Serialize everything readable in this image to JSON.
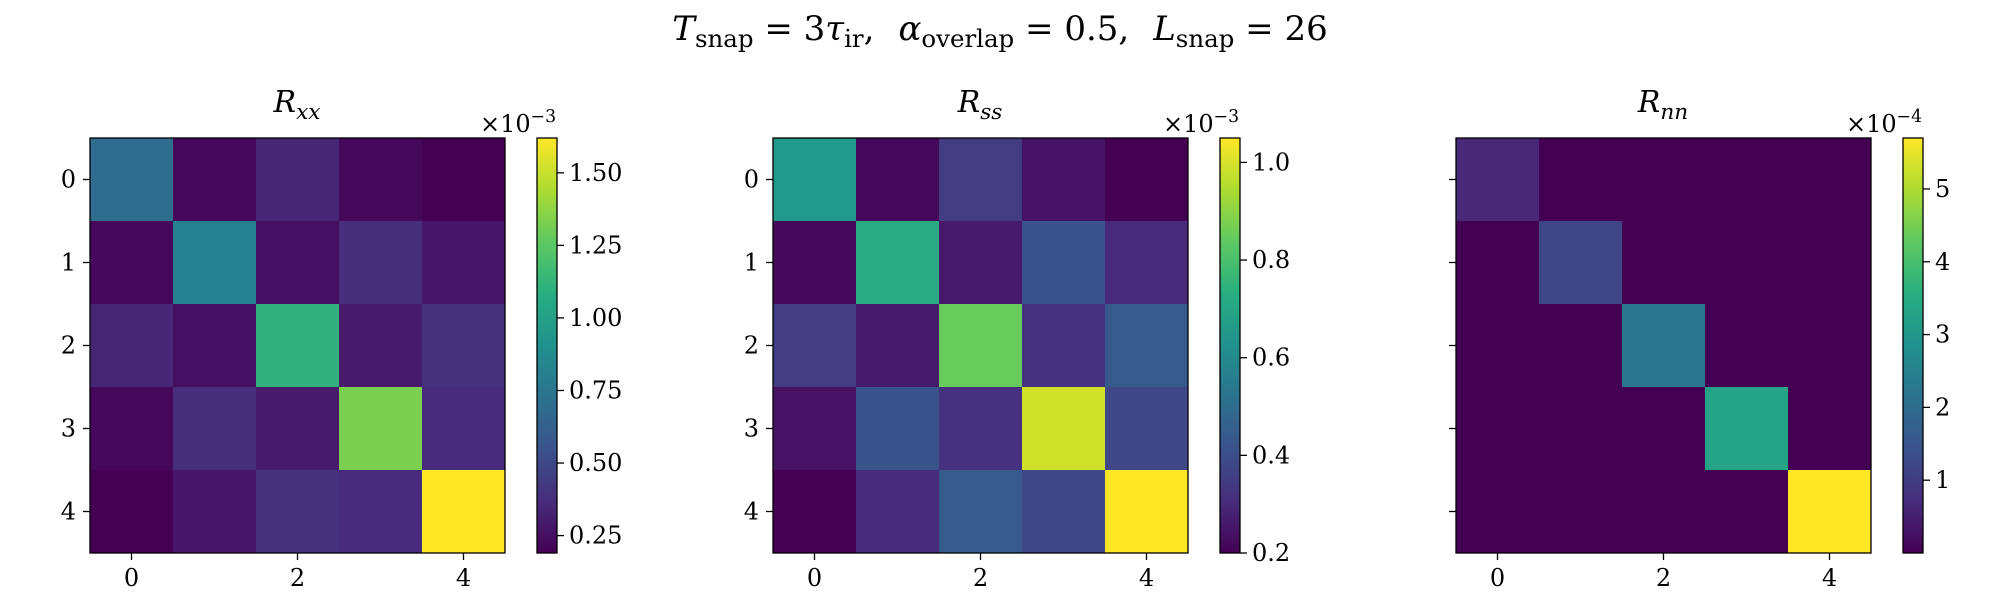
{
  "figure": {
    "suptitle_parts": {
      "t": "T",
      "t_sub": "snap",
      "t_eq": " = 3",
      "tau": "τ",
      "tau_sub": "ir",
      "sep1": ",",
      "alpha": "α",
      "alpha_sub": "overlap",
      "alpha_eq": " = 0.5,",
      "l": "L",
      "l_sub": "snap",
      "l_eq": " = 26"
    }
  },
  "chart_data": [
    {
      "type": "heatmap",
      "title": "R",
      "title_sub": "xx",
      "colormap": "viridis",
      "x_ticks": [
        "0",
        "2",
        "4"
      ],
      "y_ticks": [
        "0",
        "1",
        "2",
        "3",
        "4"
      ],
      "matrix": [
        [
          0.7,
          0.22,
          0.34,
          0.22,
          0.19
        ],
        [
          0.22,
          0.82,
          0.25,
          0.38,
          0.28
        ],
        [
          0.34,
          0.25,
          1.1,
          0.29,
          0.39
        ],
        [
          0.22,
          0.38,
          0.29,
          1.33,
          0.36
        ],
        [
          0.19,
          0.28,
          0.39,
          0.36,
          1.62
        ]
      ],
      "colorbar": {
        "vmin": 0.19,
        "vmax": 1.62,
        "ticks": [
          0.25,
          0.5,
          0.75,
          1.0,
          1.25,
          1.5
        ],
        "tick_labels": [
          "0.25",
          "0.50",
          "0.75",
          "1.00",
          "1.25",
          "1.50"
        ],
        "multiplier_base": "×10",
        "multiplier_exp": "−3"
      }
    },
    {
      "type": "heatmap",
      "title": "R",
      "title_sub": "ss",
      "colormap": "viridis",
      "x_ticks": [
        "0",
        "2",
        "4"
      ],
      "y_ticks": [
        "0",
        "1",
        "2",
        "3",
        "4"
      ],
      "matrix": [
        [
          0.66,
          0.22,
          0.35,
          0.24,
          0.2
        ],
        [
          0.22,
          0.72,
          0.26,
          0.42,
          0.3
        ],
        [
          0.35,
          0.26,
          0.85,
          0.32,
          0.44
        ],
        [
          0.24,
          0.42,
          0.32,
          0.99,
          0.38
        ],
        [
          0.2,
          0.3,
          0.44,
          0.38,
          1.05
        ]
      ],
      "colorbar": {
        "vmin": 0.2,
        "vmax": 1.05,
        "ticks": [
          0.2,
          0.4,
          0.6,
          0.8,
          1.0
        ],
        "tick_labels": [
          "0.2",
          "0.4",
          "0.6",
          "0.8",
          "1.0"
        ],
        "multiplier_base": "×10",
        "multiplier_exp": "−3"
      }
    },
    {
      "type": "heatmap",
      "title": "R",
      "title_sub": "nn",
      "colormap": "viridis",
      "x_ticks": [
        "0",
        "2",
        "4"
      ],
      "y_ticks": [],
      "matrix": [
        [
          0.65,
          0.0,
          0.0,
          0.0,
          0.0
        ],
        [
          0.0,
          1.2,
          0.0,
          0.0,
          0.0
        ],
        [
          0.0,
          0.0,
          2.25,
          0.0,
          0.0
        ],
        [
          0.0,
          0.0,
          0.0,
          3.3,
          0.0
        ],
        [
          0.0,
          0.0,
          0.0,
          0.0,
          5.7
        ]
      ],
      "colorbar": {
        "vmin": 0.0,
        "vmax": 5.7,
        "ticks": [
          1,
          2,
          3,
          4,
          5
        ],
        "tick_labels": [
          "1",
          "2",
          "3",
          "4",
          "5"
        ],
        "multiplier_base": "×10",
        "multiplier_exp": "−4"
      }
    }
  ]
}
